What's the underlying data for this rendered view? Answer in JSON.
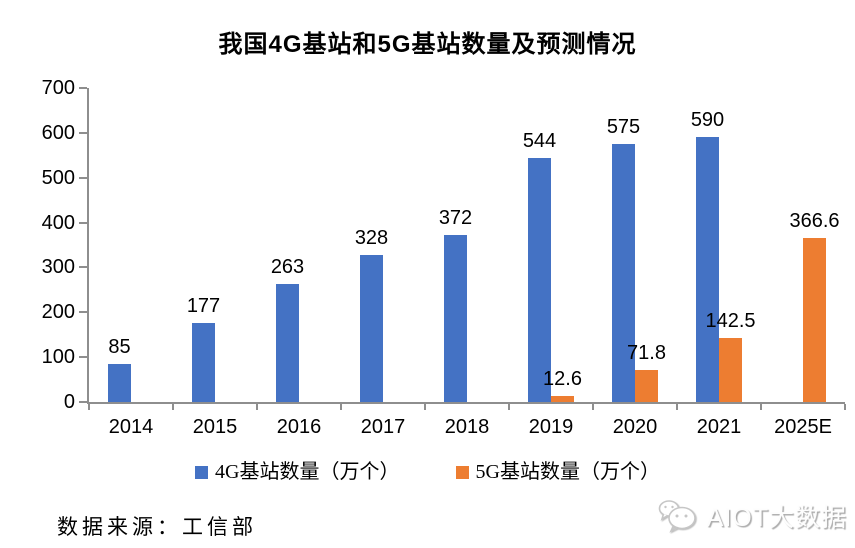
{
  "title": "我国4G基站和5G基站数量及预测情况",
  "source_note": "数据来源：工信部",
  "watermark": {
    "text": "AIOT大数据",
    "icon": "wechat-icon"
  },
  "colors": {
    "series_4g": "#4472C4",
    "series_5g": "#ED7D31",
    "axis": "#8E8E8E",
    "text": "#000000",
    "watermark_gray": "#c6c6c6"
  },
  "chart_data": {
    "type": "bar",
    "title": "我国4G基站和5G基站数量及预测情况",
    "categories": [
      "2014",
      "2015",
      "2016",
      "2017",
      "2018",
      "2019",
      "2020",
      "2021",
      "2025E"
    ],
    "series": [
      {
        "key": "4g",
        "name": "4G基站数量（万个）",
        "color": "#4472C4",
        "values": [
          85,
          177,
          263,
          328,
          372,
          544,
          575,
          590,
          null
        ]
      },
      {
        "key": "5g",
        "name": "5G基站数量（万个）",
        "color": "#ED7D31",
        "values": [
          null,
          null,
          null,
          null,
          null,
          12.6,
          71.8,
          142.5,
          366.6
        ]
      }
    ],
    "ylim": [
      0,
      700
    ],
    "yticks": [
      0,
      100,
      200,
      300,
      400,
      500,
      600,
      700
    ],
    "grid": false,
    "data_labels": true,
    "legend_position": "bottom"
  }
}
